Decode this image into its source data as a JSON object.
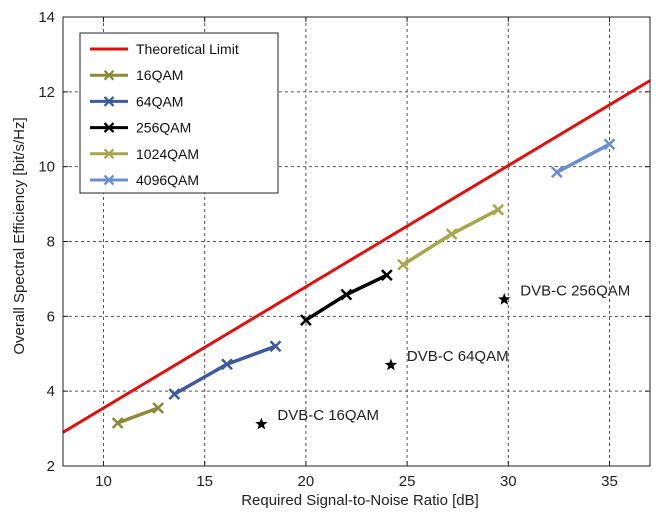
{
  "chart_data": {
    "type": "line",
    "title": "",
    "xlabel": "Required Signal-to-Noise Ratio [dB]",
    "ylabel": "Overall Spectral Efficiency [bit/s/Hz]",
    "xlim": [
      8,
      37
    ],
    "ylim": [
      2,
      14
    ],
    "xticks": [
      10,
      15,
      20,
      25,
      30,
      35
    ],
    "yticks": [
      2,
      4,
      6,
      8,
      10,
      12,
      14
    ],
    "grid": true,
    "legend_position": "top-left",
    "series": [
      {
        "name": "Theoretical Limit",
        "color": "#e01010",
        "marker": "none",
        "x": [
          8,
          37
        ],
        "y": [
          2.9,
          12.3
        ]
      },
      {
        "name": "16QAM",
        "color": "#8a8a3a",
        "marker": "x",
        "x": [
          10.7,
          12.7
        ],
        "y": [
          3.15,
          3.55
        ]
      },
      {
        "name": "64QAM",
        "color": "#3d5a9c",
        "marker": "x",
        "x": [
          13.5,
          16.1,
          18.5
        ],
        "y": [
          3.92,
          4.72,
          5.2
        ]
      },
      {
        "name": "256QAM",
        "color": "#000000",
        "marker": "x",
        "x": [
          20.0,
          22.0,
          24.0
        ],
        "y": [
          5.9,
          6.58,
          7.1
        ]
      },
      {
        "name": "1024QAM",
        "color": "#a6a64a",
        "marker": "x",
        "x": [
          24.8,
          27.2,
          29.5
        ],
        "y": [
          7.38,
          8.2,
          8.85
        ]
      },
      {
        "name": "4096QAM",
        "color": "#6a8ed0",
        "marker": "x",
        "x": [
          32.4,
          35.0
        ],
        "y": [
          9.85,
          10.6
        ]
      }
    ],
    "annotations": [
      {
        "label": "DVB-C 16QAM",
        "x": 17.8,
        "y": 3.12
      },
      {
        "label": "DVB-C 64QAM",
        "x": 24.2,
        "y": 4.7
      },
      {
        "label": "DVB-C 256QAM",
        "x": 29.8,
        "y": 6.45
      }
    ]
  }
}
